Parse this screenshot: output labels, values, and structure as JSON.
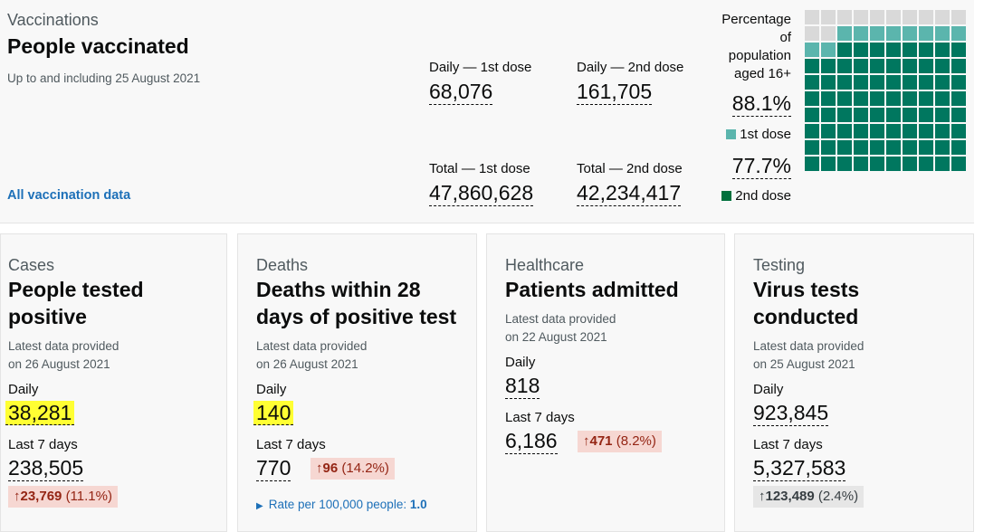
{
  "vaccinations": {
    "caption": "Vaccinations",
    "title": "People vaccinated",
    "date_note": "Up to and including 25 August 2021",
    "link": "All vaccination data",
    "daily_first_label": "Daily — 1st dose",
    "daily_first_value": "68,076",
    "daily_second_label": "Daily — 2nd dose",
    "daily_second_value": "161,705",
    "total_first_label": "Total — 1st dose",
    "total_first_value": "47,860,628",
    "total_second_label": "Total — 2nd dose",
    "total_second_value": "42,234,417",
    "pct_heading_1": "Percentage",
    "pct_heading_2": "of",
    "pct_heading_3": "population",
    "pct_heading_4": "aged 16+",
    "first_pct": "88.1%",
    "first_legend": "1st dose",
    "second_pct": "77.7%",
    "second_legend": "2nd dose",
    "first_pct_value": 88.1,
    "second_pct_value": 77.7,
    "colors": {
      "first": "#5bb5ad",
      "second": "#00703c",
      "second_waffle": "#00775f",
      "empty": "#d9d9d9"
    }
  },
  "cards": {
    "cases": {
      "caption": "Cases",
      "title_1": "People tested",
      "title_2": "positive",
      "note_1": "Latest data provided",
      "note_2": "on 26 August 2021",
      "daily_label": "Daily",
      "daily_value": "38,281",
      "week_label": "Last 7 days",
      "week_value": "238,505",
      "change_value": "23,769",
      "change_pct": "(11.1%)"
    },
    "deaths": {
      "caption": "Deaths",
      "title_1": "Deaths within 28",
      "title_2": "days of positive test",
      "note_1": "Latest data provided",
      "note_2": "on 26 August 2021",
      "daily_label": "Daily",
      "daily_value": "140",
      "week_label": "Last 7 days",
      "week_value": "770",
      "change_value": "96",
      "change_pct": "(14.2%)",
      "rate_label": "Rate per 100,000 people:",
      "rate_value": "1.0"
    },
    "healthcare": {
      "caption": "Healthcare",
      "title_1": "Patients admitted",
      "note_1": "Latest data provided",
      "note_2": "on 22 August 2021",
      "daily_label": "Daily",
      "daily_value": "818",
      "week_label": "Last 7 days",
      "week_value": "6,186",
      "change_value": "471",
      "change_pct": "(8.2%)"
    },
    "testing": {
      "caption": "Testing",
      "title_1": "Virus tests",
      "title_2": "conducted",
      "note_1": "Latest data provided",
      "note_2": "on 25 August 2021",
      "daily_label": "Daily",
      "daily_value": "923,845",
      "week_label": "Last 7 days",
      "week_value": "5,327,583",
      "change_value": "123,489",
      "change_pct": "(2.4%)"
    }
  }
}
